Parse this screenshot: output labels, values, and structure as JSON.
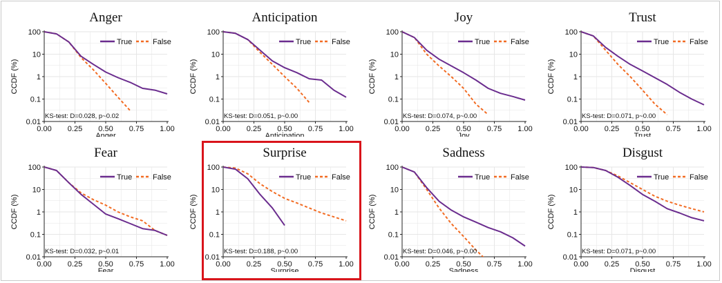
{
  "colors": {
    "true_line": "#6a2c8e",
    "false_line": "#f26b22",
    "grid": "#e6e6e6",
    "highlight": "#d9141b"
  },
  "highlighted_panel": "Surprise",
  "chart_data": [
    {
      "type": "line",
      "title": "Anger",
      "xlabel": "Anger",
      "ylabel": "CCDF (%)",
      "x_ticks": [
        "0.00",
        "0.25",
        "0.50",
        "0.75",
        "1.00"
      ],
      "y_ticks": [
        "0.01",
        "0.1",
        "1",
        "10",
        "100"
      ],
      "xlim": [
        0,
        1
      ],
      "ylim": [
        0.01,
        100
      ],
      "y_scale": "log",
      "legend": "top-right",
      "annotation": "KS-test: D=0.028, p~0.02",
      "series": [
        {
          "name": "True",
          "style": "solid",
          "x": [
            0,
            0.1,
            0.2,
            0.3,
            0.4,
            0.5,
            0.6,
            0.7,
            0.8,
            0.9,
            1.0
          ],
          "y": [
            100,
            80,
            35,
            8,
            3.5,
            1.6,
            0.9,
            0.55,
            0.3,
            0.25,
            0.17
          ]
        },
        {
          "name": "False",
          "style": "dashed",
          "x": [
            0,
            0.1,
            0.2,
            0.3,
            0.4,
            0.5,
            0.6,
            0.7
          ],
          "y": [
            100,
            80,
            35,
            7,
            2,
            0.5,
            0.12,
            0.03
          ]
        }
      ]
    },
    {
      "type": "line",
      "title": "Anticipation",
      "xlabel": "Anticipation",
      "ylabel": "CCDF (%)",
      "x_ticks": [
        "0.00",
        "0.25",
        "0.50",
        "0.75",
        "1.00"
      ],
      "y_ticks": [
        "0.01",
        "0.1",
        "1",
        "10",
        "100"
      ],
      "xlim": [
        0,
        1
      ],
      "ylim": [
        0.01,
        100
      ],
      "y_scale": "log",
      "legend": "top-right",
      "annotation": "KS-test: D=0.051, p~0.00",
      "series": [
        {
          "name": "True",
          "style": "solid",
          "x": [
            0,
            0.1,
            0.2,
            0.3,
            0.4,
            0.5,
            0.6,
            0.7,
            0.8,
            0.9,
            1.0
          ],
          "y": [
            100,
            85,
            45,
            15,
            5,
            2.5,
            1.5,
            0.8,
            0.7,
            0.25,
            0.12
          ]
        },
        {
          "name": "False",
          "style": "dashed",
          "x": [
            0,
            0.1,
            0.2,
            0.3,
            0.4,
            0.5,
            0.6,
            0.7
          ],
          "y": [
            100,
            85,
            45,
            12,
            3.5,
            1,
            0.3,
            0.07
          ]
        }
      ]
    },
    {
      "type": "line",
      "title": "Joy",
      "xlabel": "Joy",
      "ylabel": "CCDF (%)",
      "x_ticks": [
        "0.00",
        "0.25",
        "0.50",
        "0.75",
        "1.00"
      ],
      "y_ticks": [
        "0.01",
        "0.1",
        "1",
        "10",
        "100"
      ],
      "xlim": [
        0,
        1
      ],
      "ylim": [
        0.01,
        100
      ],
      "y_scale": "log",
      "legend": "top-right",
      "annotation": "KS-test: D=0.074, p~0.00",
      "series": [
        {
          "name": "True",
          "style": "solid",
          "x": [
            0,
            0.1,
            0.2,
            0.3,
            0.4,
            0.5,
            0.6,
            0.7,
            0.8,
            0.9,
            1.0
          ],
          "y": [
            100,
            55,
            15,
            6,
            3,
            1.5,
            0.7,
            0.3,
            0.18,
            0.13,
            0.09
          ]
        },
        {
          "name": "False",
          "style": "dashed",
          "x": [
            0,
            0.1,
            0.2,
            0.3,
            0.4,
            0.5,
            0.6,
            0.7
          ],
          "y": [
            100,
            55,
            10,
            3,
            1,
            0.3,
            0.06,
            0.02
          ]
        }
      ]
    },
    {
      "type": "line",
      "title": "Trust",
      "xlabel": "Trust",
      "ylabel": "CCDF (%)",
      "x_ticks": [
        "0.00",
        "0.25",
        "0.50",
        "0.75",
        "1.00"
      ],
      "y_ticks": [
        "0.01",
        "0.1",
        "1",
        "10",
        "100"
      ],
      "xlim": [
        0,
        1
      ],
      "ylim": [
        0.01,
        100
      ],
      "y_scale": "log",
      "legend": "top-right",
      "annotation": "KS-test: D=0.071, p~0.00",
      "series": [
        {
          "name": "True",
          "style": "solid",
          "x": [
            0,
            0.1,
            0.2,
            0.3,
            0.4,
            0.5,
            0.6,
            0.7,
            0.8,
            0.9,
            1.0
          ],
          "y": [
            100,
            65,
            20,
            8,
            3.5,
            1.8,
            0.9,
            0.45,
            0.2,
            0.1,
            0.055
          ]
        },
        {
          "name": "False",
          "style": "dashed",
          "x": [
            0,
            0.1,
            0.2,
            0.3,
            0.4,
            0.5,
            0.6,
            0.7
          ],
          "y": [
            100,
            65,
            15,
            3.5,
            1,
            0.25,
            0.06,
            0.02
          ]
        }
      ]
    },
    {
      "type": "line",
      "title": "Fear",
      "xlabel": "Fear",
      "ylabel": "CCDF (%)",
      "x_ticks": [
        "0.00",
        "0.25",
        "0.50",
        "0.75",
        "1.00"
      ],
      "y_ticks": [
        "0.01",
        "0.1",
        "1",
        "10",
        "100"
      ],
      "xlim": [
        0,
        1
      ],
      "ylim": [
        0.01,
        100
      ],
      "y_scale": "log",
      "legend": "top-right",
      "annotation": "KS-test: D=0.032, p~0.01",
      "series": [
        {
          "name": "True",
          "style": "solid",
          "x": [
            0,
            0.1,
            0.2,
            0.3,
            0.4,
            0.5,
            0.6,
            0.7,
            0.8,
            0.9,
            1.0
          ],
          "y": [
            100,
            70,
            20,
            6,
            2.2,
            0.8,
            0.5,
            0.3,
            0.18,
            0.15,
            0.09
          ]
        },
        {
          "name": "False",
          "style": "dashed",
          "x": [
            0,
            0.1,
            0.2,
            0.3,
            0.4,
            0.5,
            0.6,
            0.7,
            0.8,
            0.9,
            1.0
          ],
          "y": [
            100,
            70,
            20,
            7,
            3.5,
            2,
            1,
            0.6,
            0.4,
            0.15,
            0.09
          ]
        }
      ]
    },
    {
      "type": "line",
      "title": "Surprise",
      "xlabel": "Surprise",
      "ylabel": "CCDF (%)",
      "x_ticks": [
        "0.00",
        "0.25",
        "0.50",
        "0.75",
        "1.00"
      ],
      "y_ticks": [
        "0.01",
        "0.1",
        "1",
        "10",
        "100"
      ],
      "xlim": [
        0,
        1
      ],
      "ylim": [
        0.01,
        100
      ],
      "y_scale": "log",
      "legend": "top-right",
      "annotation": "KS-test: D=0.188, p~0.00",
      "series": [
        {
          "name": "True",
          "style": "solid",
          "x": [
            0,
            0.1,
            0.2,
            0.3,
            0.4,
            0.5
          ],
          "y": [
            100,
            80,
            30,
            6,
            1.5,
            0.25
          ]
        },
        {
          "name": "False",
          "style": "dashed",
          "x": [
            0,
            0.1,
            0.2,
            0.3,
            0.4,
            0.5,
            0.6,
            0.7,
            0.8,
            0.9,
            1.0
          ],
          "y": [
            100,
            90,
            50,
            18,
            8,
            4,
            2.5,
            1.5,
            0.9,
            0.6,
            0.4
          ]
        }
      ]
    },
    {
      "type": "line",
      "title": "Sadness",
      "xlabel": "Sadness",
      "ylabel": "CCDF (%)",
      "x_ticks": [
        "0.00",
        "0.25",
        "0.50",
        "0.75",
        "1.00"
      ],
      "y_ticks": [
        "0.01",
        "0.1",
        "1",
        "10",
        "100"
      ],
      "xlim": [
        0,
        1
      ],
      "ylim": [
        0.01,
        100
      ],
      "y_scale": "log",
      "legend": "top-right",
      "annotation": "KS-test: D=0.046, p~0.00",
      "series": [
        {
          "name": "True",
          "style": "solid",
          "x": [
            0,
            0.1,
            0.2,
            0.3,
            0.4,
            0.5,
            0.6,
            0.7,
            0.8,
            0.9,
            1.0
          ],
          "y": [
            100,
            60,
            12,
            3,
            1.2,
            0.6,
            0.35,
            0.2,
            0.13,
            0.07,
            0.03
          ]
        },
        {
          "name": "False",
          "style": "dashed",
          "x": [
            0,
            0.1,
            0.2,
            0.3,
            0.4,
            0.5,
            0.6,
            0.7
          ],
          "y": [
            100,
            60,
            10,
            1.5,
            0.3,
            0.08,
            0.02,
            0.006
          ]
        }
      ]
    },
    {
      "type": "line",
      "title": "Disgust",
      "xlabel": "Disgust",
      "ylabel": "CCDF (%)",
      "x_ticks": [
        "0.00",
        "0.25",
        "0.50",
        "0.75",
        "1.00"
      ],
      "y_ticks": [
        "0.01",
        "0.1",
        "1",
        "10",
        "100"
      ],
      "xlim": [
        0,
        1
      ],
      "ylim": [
        0.01,
        100
      ],
      "y_scale": "log",
      "legend": "top-right",
      "annotation": "KS-test: D=0.071, p~0.00",
      "series": [
        {
          "name": "True",
          "style": "solid",
          "x": [
            0,
            0.1,
            0.2,
            0.3,
            0.4,
            0.5,
            0.6,
            0.7,
            0.8,
            0.9,
            1.0
          ],
          "y": [
            100,
            95,
            70,
            35,
            15,
            6,
            3,
            1.4,
            0.9,
            0.55,
            0.4
          ]
        },
        {
          "name": "False",
          "style": "dashed",
          "x": [
            0,
            0.1,
            0.2,
            0.3,
            0.4,
            0.5,
            0.6,
            0.7,
            0.8,
            0.9,
            1.0
          ],
          "y": [
            100,
            95,
            70,
            40,
            20,
            10,
            5,
            3,
            2,
            1.4,
            1
          ]
        }
      ]
    }
  ]
}
